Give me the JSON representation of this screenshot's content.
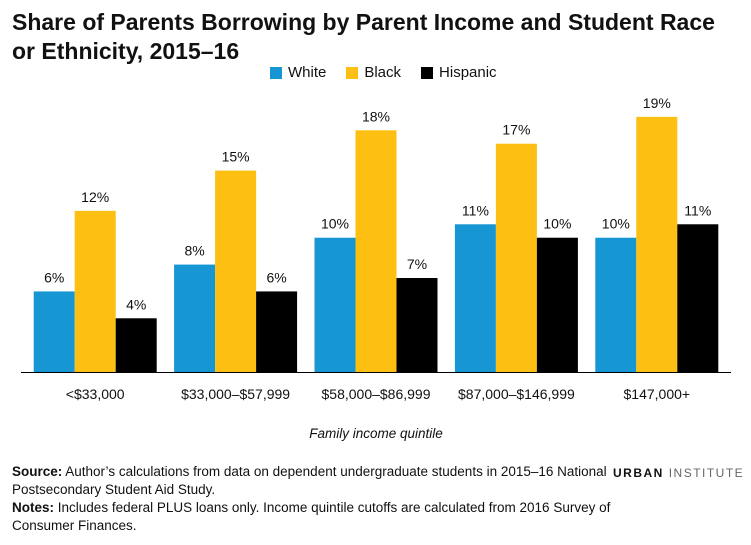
{
  "title": "Share of Parents Borrowing by Parent Income and Student Race or Ethnicity, 2015–16",
  "footer": {
    "source_label": "Source:",
    "source_text": "Author’s calculations from data on dependent undergraduate students in 2015–16 National Postsecondary Student Aid Study.",
    "notes_label": "Notes:",
    "notes_text": "Includes federal PLUS loans only. Income quintile cutoffs are calculated from 2016 Survey of Consumer Finances."
  },
  "brand": {
    "part1": "URBAN",
    "part2": "INSTITUTE"
  },
  "chart_data": {
    "type": "bar",
    "title": "Share of Parents Borrowing by Parent Income and Student Race or Ethnicity, 2015–16",
    "xlabel": "Family income quintile",
    "ylabel": "",
    "ylim": [
      0,
      21
    ],
    "grid": false,
    "legend_position": "top",
    "categories": [
      "<$33,000",
      "$33,000–$57,999",
      "$58,000–$86,999",
      "$87,000–$146,999",
      "$147,000+"
    ],
    "series": [
      {
        "name": "White",
        "color": "#1696d2",
        "values": [
          6,
          8,
          10,
          11,
          10
        ],
        "labels": [
          "6%",
          "8%",
          "10%",
          "11%",
          "10%"
        ]
      },
      {
        "name": "Black",
        "color": "#fdbf11",
        "values": [
          12,
          15,
          18,
          17,
          19
        ],
        "labels": [
          "12%",
          "15%",
          "18%",
          "17%",
          "19%"
        ]
      },
      {
        "name": "Hispanic",
        "color": "#000000",
        "values": [
          4,
          6,
          7,
          10,
          11
        ],
        "labels": [
          "4%",
          "6%",
          "7%",
          "10%",
          "11%"
        ]
      }
    ]
  }
}
